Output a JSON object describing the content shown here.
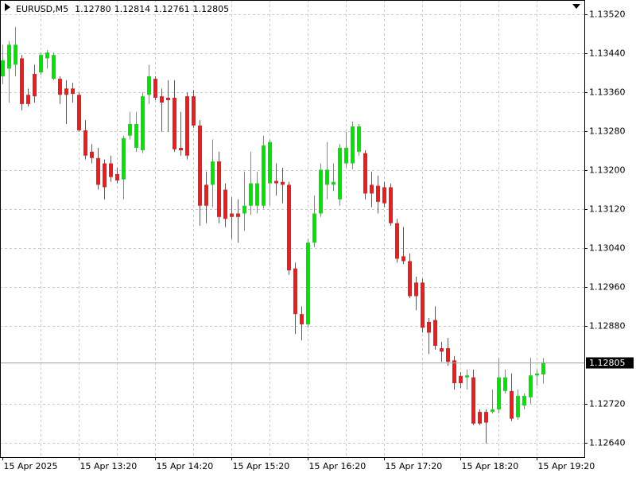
{
  "chart_data": {
    "type": "candlestick",
    "title": "EURUSD,M5",
    "ohlc_labels": [
      "1.12780",
      "1.12814",
      "1.12761",
      "1.12805"
    ],
    "price_label": "1.12805",
    "categories": [
      "15 Apr 2025",
      null,
      null,
      null,
      null,
      null,
      null,
      null,
      null,
      null,
      null,
      null,
      "15 Apr 13:20",
      null,
      null,
      null,
      null,
      null,
      null,
      null,
      null,
      null,
      null,
      null,
      "15 Apr 14:20",
      null,
      null,
      null,
      null,
      null,
      null,
      null,
      null,
      null,
      null,
      null,
      "15 Apr 15:20",
      null,
      null,
      null,
      null,
      null,
      null,
      null,
      null,
      null,
      null,
      null,
      "15 Apr 16:20",
      null,
      null,
      null,
      null,
      null,
      null,
      null,
      null,
      null,
      null,
      null,
      "15 Apr 17:20",
      null,
      null,
      null,
      null,
      null,
      null,
      null,
      null,
      null,
      null,
      null,
      "15 Apr 18:20",
      null,
      null,
      null,
      null,
      null,
      null,
      null,
      null,
      null,
      null,
      null,
      "15 Apr 19:20",
      null
    ],
    "open": [
      1.13393,
      1.13409,
      1.13417,
      1.1343,
      1.13355,
      1.13398,
      1.13401,
      1.1343,
      1.13388,
      1.13388,
      1.13368,
      1.13368,
      1.13355,
      1.13282,
      1.13238,
      1.13225,
      1.13214,
      1.13214,
      1.13192,
      1.13181,
      1.13271,
      1.13246,
      1.13241,
      1.13355,
      1.13388,
      1.13352,
      1.13349,
      1.13349,
      1.13246,
      1.13352,
      1.13352,
      1.13292,
      1.1317,
      1.1317,
      1.13218,
      1.1316,
      1.13111,
      1.13111,
      1.13111,
      1.13127,
      1.13127,
      1.13127,
      1.13173,
      1.13178,
      1.13176,
      1.1317,
      1.12998,
      1.12904,
      1.12883,
      1.13051,
      1.13111,
      1.1317,
      1.1317,
      1.1314,
      1.13214,
      1.13214,
      1.13238,
      1.13235,
      1.1317,
      1.13168,
      1.13165,
      1.13165,
      1.13091,
      1.13023,
      1.13013,
      1.12969,
      1.12969,
      1.12888,
      1.12892,
      1.12834,
      1.12834,
      1.12809,
      1.12777,
      1.12774,
      1.12774,
      1.12703,
      1.12703,
      1.12703,
      1.12708,
      1.12746,
      1.12746,
      1.12692,
      1.12716,
      1.12733,
      1.12778,
      1.1278
    ],
    "high": [
      1.13458,
      1.13466,
      1.13494,
      1.13437,
      1.13368,
      1.13417,
      1.13442,
      1.13447,
      1.13442,
      1.13393,
      1.13385,
      1.1338,
      1.1336,
      1.13303,
      1.13254,
      1.13246,
      1.13222,
      1.1323,
      1.13205,
      1.13271,
      1.1332,
      1.1332,
      1.1336,
      1.13417,
      1.13393,
      1.13368,
      1.13385,
      1.13385,
      1.1332,
      1.1336,
      1.13365,
      1.13303,
      1.13197,
      1.13263,
      1.13238,
      1.13173,
      1.13144,
      1.1314,
      1.13197,
      1.13238,
      1.13197,
      1.13271,
      1.13263,
      1.13214,
      1.13205,
      1.13176,
      1.1301,
      1.1292,
      1.13059,
      1.13148,
      1.13214,
      1.13258,
      1.13214,
      1.13254,
      1.13279,
      1.133,
      1.13295,
      1.13241,
      1.13197,
      1.13189,
      1.13176,
      1.13173,
      1.131,
      1.13083,
      1.13029,
      1.12981,
      1.12977,
      1.12896,
      1.1292,
      1.12847,
      1.12855,
      1.12818,
      1.12785,
      1.1279,
      1.1279,
      1.12708,
      1.12708,
      1.12749,
      1.12814,
      1.1279,
      1.12782,
      1.12749,
      1.12741,
      1.12814,
      1.1279,
      1.12814
    ],
    "low": [
      1.13377,
      1.13339,
      1.13393,
      1.13323,
      1.13331,
      1.13339,
      1.13396,
      1.13409,
      1.13385,
      1.13336,
      1.13295,
      1.13339,
      1.13279,
      1.13222,
      1.13214,
      1.1316,
      1.1314,
      1.13176,
      1.13173,
      1.1314,
      1.13263,
      1.13238,
      1.13235,
      1.13336,
      1.13344,
      1.13279,
      1.13279,
      1.13238,
      1.1323,
      1.13222,
      1.13287,
      1.13086,
      1.13091,
      1.13124,
      1.13091,
      1.13083,
      1.13059,
      1.13051,
      1.13075,
      1.13108,
      1.13111,
      1.13121,
      1.13127,
      1.13148,
      1.13132,
      1.12985,
      1.12863,
      1.1285,
      1.12876,
      1.13042,
      1.13104,
      1.1314,
      1.13157,
      1.13127,
      1.13205,
      1.13202,
      1.1323,
      1.1314,
      1.13124,
      1.13111,
      1.13124,
      1.13086,
      1.1301,
      1.13007,
      1.12937,
      1.12912,
      1.12866,
      1.12822,
      1.12831,
      1.12806,
      1.12798,
      1.12749,
      1.12752,
      1.12749,
      1.12676,
      1.12676,
      1.12638,
      1.127,
      1.127,
      1.12741,
      1.12684,
      1.12687,
      1.12708,
      1.1272,
      1.12757,
      1.12761
    ],
    "close": [
      1.13426,
      1.13458,
      1.13458,
      1.13336,
      1.13336,
      1.13352,
      1.13437,
      1.13442,
      1.13437,
      1.13355,
      1.13355,
      1.13357,
      1.13282,
      1.1323,
      1.13225,
      1.1317,
      1.13165,
      1.13186,
      1.13179,
      1.13266,
      1.13295,
      1.13295,
      1.13352,
      1.13393,
      1.13349,
      1.13339,
      1.13344,
      1.13243,
      1.13241,
      1.1323,
      1.13292,
      1.13127,
      1.13127,
      1.13218,
      1.13104,
      1.131,
      1.13104,
      1.13104,
      1.13127,
      1.13173,
      1.13173,
      1.13251,
      1.13258,
      1.13173,
      1.1317,
      1.12994,
      1.12904,
      1.12883,
      1.13051,
      1.13111,
      1.13201,
      1.13201,
      1.13176,
      1.13246,
      1.13246,
      1.1329,
      1.1329,
      1.13152,
      1.13152,
      1.13135,
      1.13132,
      1.13091,
      1.13018,
      1.13013,
      1.12941,
      1.12941,
      1.12876,
      1.12866,
      1.12839,
      1.12827,
      1.12806,
      1.12762,
      1.12762,
      1.12778,
      1.12679,
      1.12679,
      1.12681,
      1.12708,
      1.12774,
      1.12774,
      1.12689,
      1.12736,
      1.12736,
      1.12778,
      1.12782,
      1.12805
    ],
    "up_color": "#00e600",
    "down_color": "#ee1c1c",
    "ylim": [
      1.1261,
      1.1355
    ],
    "yticks": [
      {
        "value": 1.1264,
        "label": "1.12640"
      },
      {
        "value": 1.1272,
        "label": "1.12720"
      },
      {
        "value": 1.1288,
        "label": "1.12880"
      },
      {
        "value": 1.1296,
        "label": "1.12960"
      },
      {
        "value": 1.1304,
        "label": "1.13040"
      },
      {
        "value": 1.1312,
        "label": "1.13120"
      },
      {
        "value": 1.132,
        "label": "1.13200"
      },
      {
        "value": 1.1328,
        "label": "1.13280"
      },
      {
        "value": 1.1336,
        "label": "1.13360"
      },
      {
        "value": 1.1344,
        "label": "1.13440"
      },
      {
        "value": 1.1352,
        "label": "1.13520"
      }
    ],
    "grid": true
  }
}
